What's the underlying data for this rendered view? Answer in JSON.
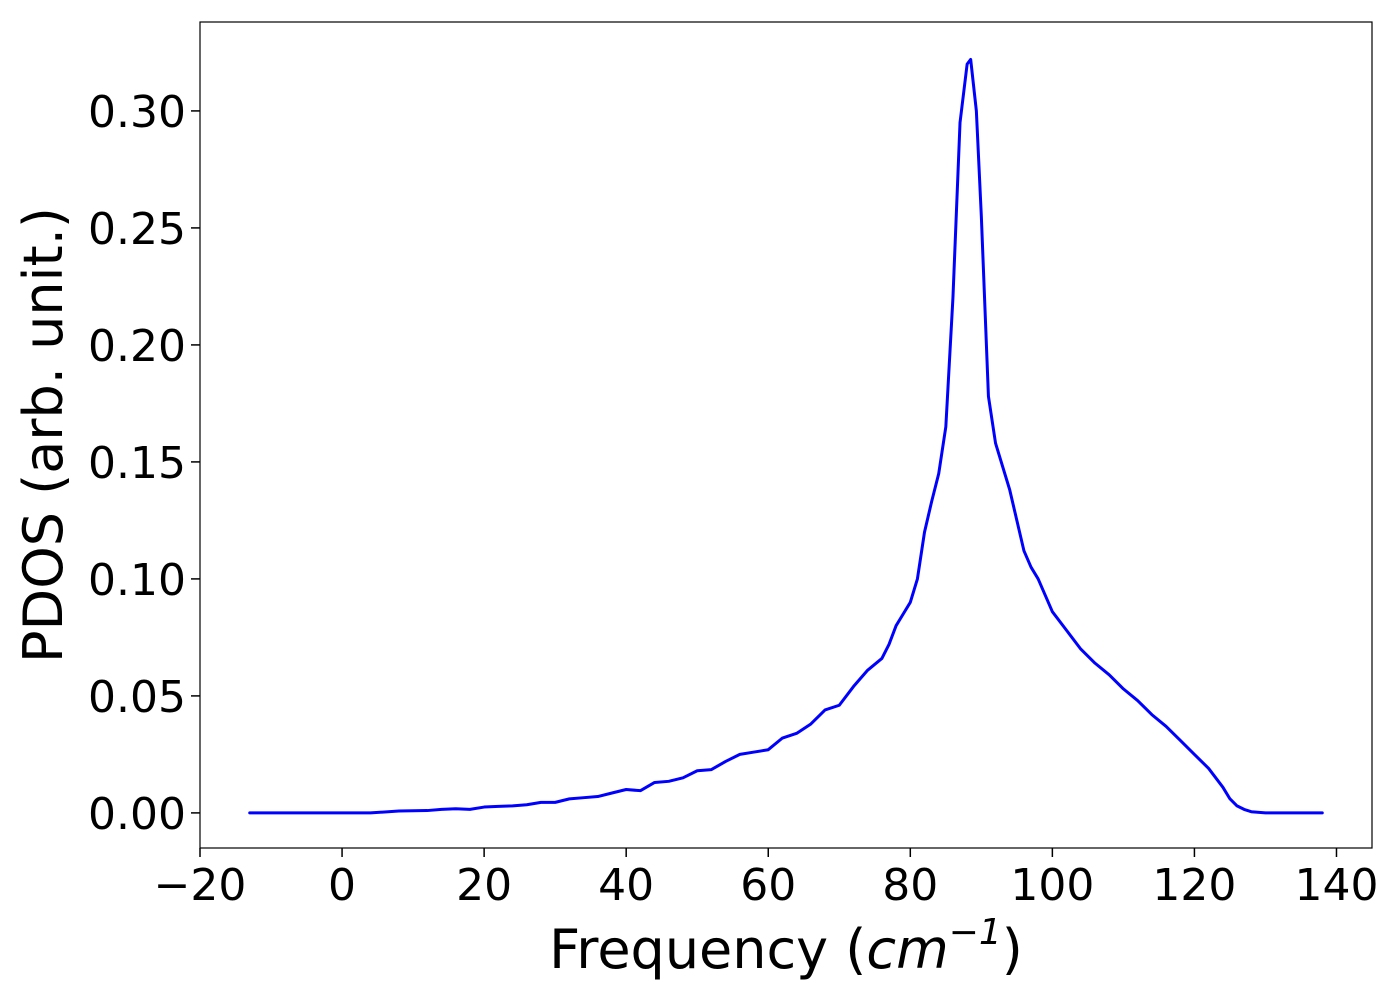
{
  "chart_data": {
    "type": "line",
    "title": "",
    "xlabel": {
      "prefix": "Frequency (",
      "unit_base": "cm",
      "unit_exponent": "−1",
      "suffix": ")"
    },
    "ylabel": "PDOS (arb. unit.)",
    "xlim": [
      -20,
      145
    ],
    "ylim": [
      -0.015,
      0.338
    ],
    "xticks": [
      -20,
      0,
      20,
      40,
      60,
      80,
      100,
      120,
      140
    ],
    "xtick_labels": [
      "−20",
      "0",
      "20",
      "40",
      "60",
      "80",
      "100",
      "120",
      "140"
    ],
    "yticks": [
      0.0,
      0.05,
      0.1,
      0.15,
      0.2,
      0.25,
      0.3
    ],
    "ytick_labels": [
      "0.00",
      "0.05",
      "0.10",
      "0.15",
      "0.20",
      "0.25",
      "0.30"
    ],
    "grid": false,
    "legend": "none",
    "series": [
      {
        "color": "#0000ff",
        "x": [
          -13,
          0,
          4,
          8,
          12,
          14,
          16,
          18,
          20,
          22,
          24,
          26,
          28,
          30,
          32,
          34,
          36,
          38,
          40,
          42,
          44,
          46,
          48,
          50,
          52,
          54,
          56,
          58,
          60,
          62,
          64,
          66,
          68,
          70,
          72,
          74,
          76,
          77,
          78,
          79,
          80,
          81,
          82,
          83,
          84,
          85,
          86,
          87,
          88,
          88.5,
          89.3,
          90,
          91,
          92,
          93,
          94,
          95,
          96,
          97,
          98,
          100,
          102,
          104,
          106,
          108,
          110,
          112,
          114,
          116,
          118,
          120,
          122,
          124,
          125,
          126,
          127,
          128,
          130,
          138
        ],
        "y": [
          0.0,
          0.0,
          0.0,
          0.0008,
          0.001,
          0.0015,
          0.0018,
          0.0015,
          0.0025,
          0.0028,
          0.003,
          0.0035,
          0.0045,
          0.0045,
          0.006,
          0.0065,
          0.007,
          0.0085,
          0.01,
          0.0095,
          0.013,
          0.0135,
          0.015,
          0.018,
          0.0185,
          0.022,
          0.025,
          0.026,
          0.027,
          0.032,
          0.034,
          0.038,
          0.044,
          0.046,
          0.054,
          0.061,
          0.066,
          0.072,
          0.08,
          0.085,
          0.09,
          0.1,
          0.12,
          0.133,
          0.145,
          0.165,
          0.22,
          0.295,
          0.32,
          0.322,
          0.3,
          0.255,
          0.178,
          0.158,
          0.148,
          0.138,
          0.125,
          0.112,
          0.105,
          0.1,
          0.086,
          0.078,
          0.07,
          0.064,
          0.059,
          0.053,
          0.048,
          0.042,
          0.037,
          0.031,
          0.025,
          0.019,
          0.011,
          0.006,
          0.003,
          0.0015,
          0.0005,
          0.0,
          0.0
        ]
      }
    ]
  }
}
